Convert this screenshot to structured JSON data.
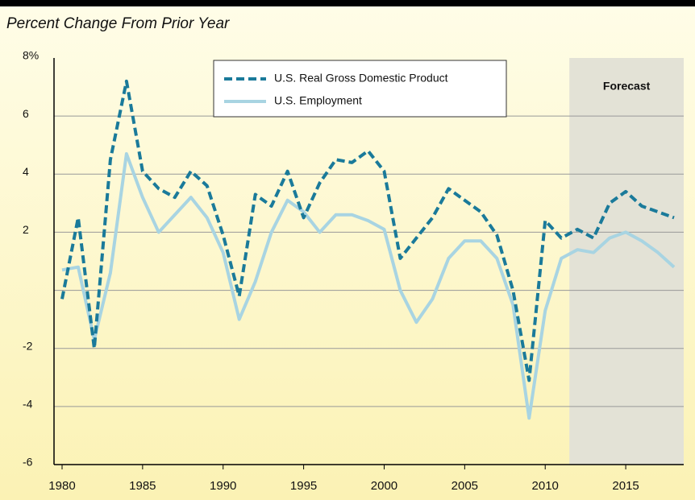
{
  "chart_data": {
    "type": "line",
    "title": "Percent Change From Prior Year",
    "x": [
      1980,
      1981,
      1982,
      1983,
      1984,
      1985,
      1986,
      1987,
      1988,
      1989,
      1990,
      1991,
      1992,
      1993,
      1994,
      1995,
      1996,
      1997,
      1998,
      1999,
      2000,
      2001,
      2002,
      2003,
      2004,
      2005,
      2006,
      2007,
      2008,
      2009,
      2010,
      2011,
      2012,
      2013,
      2014,
      2015,
      2016,
      2017,
      2018
    ],
    "series": [
      {
        "name": "U.S. Real Gross Domestic Product",
        "color": "#1a7a9a",
        "dashed": true,
        "values": [
          -0.3,
          2.5,
          -2.0,
          4.5,
          7.2,
          4.1,
          3.5,
          3.2,
          4.1,
          3.6,
          1.9,
          -0.2,
          3.3,
          2.9,
          4.1,
          2.5,
          3.7,
          4.5,
          4.4,
          4.8,
          4.1,
          1.1,
          1.8,
          2.5,
          3.5,
          3.1,
          2.7,
          1.9,
          0.0,
          -3.1,
          2.4,
          1.8,
          2.1,
          1.8,
          3.0,
          3.4,
          2.9,
          2.7,
          2.5
        ]
      },
      {
        "name": "U.S. Employment",
        "color": "#a8d4e2",
        "dashed": false,
        "values": [
          0.7,
          0.8,
          -1.7,
          0.6,
          4.7,
          3.2,
          2.0,
          2.6,
          3.2,
          2.5,
          1.3,
          -1.0,
          0.3,
          2.0,
          3.1,
          2.7,
          2.0,
          2.6,
          2.6,
          2.4,
          2.1,
          0.0,
          -1.1,
          -0.3,
          1.1,
          1.7,
          1.7,
          1.1,
          -0.5,
          -4.4,
          -0.7,
          1.1,
          1.4,
          1.3,
          1.8,
          2.0,
          1.7,
          1.3,
          0.8
        ]
      }
    ],
    "xlim": [
      1979.5,
      2018.6
    ],
    "xticks": [
      1980,
      1985,
      1990,
      1995,
      2000,
      2005,
      2010,
      2015
    ],
    "ylim": [
      -6,
      8
    ],
    "yticks": [
      -6,
      -4,
      -2,
      {
        "value": 0,
        "label": null
      },
      2,
      4,
      6,
      {
        "value": 8,
        "label": "8%"
      }
    ],
    "grid": true,
    "forecast_region": {
      "label": "Forecast",
      "start": 2011.5,
      "color": "#e3e2d6"
    }
  }
}
